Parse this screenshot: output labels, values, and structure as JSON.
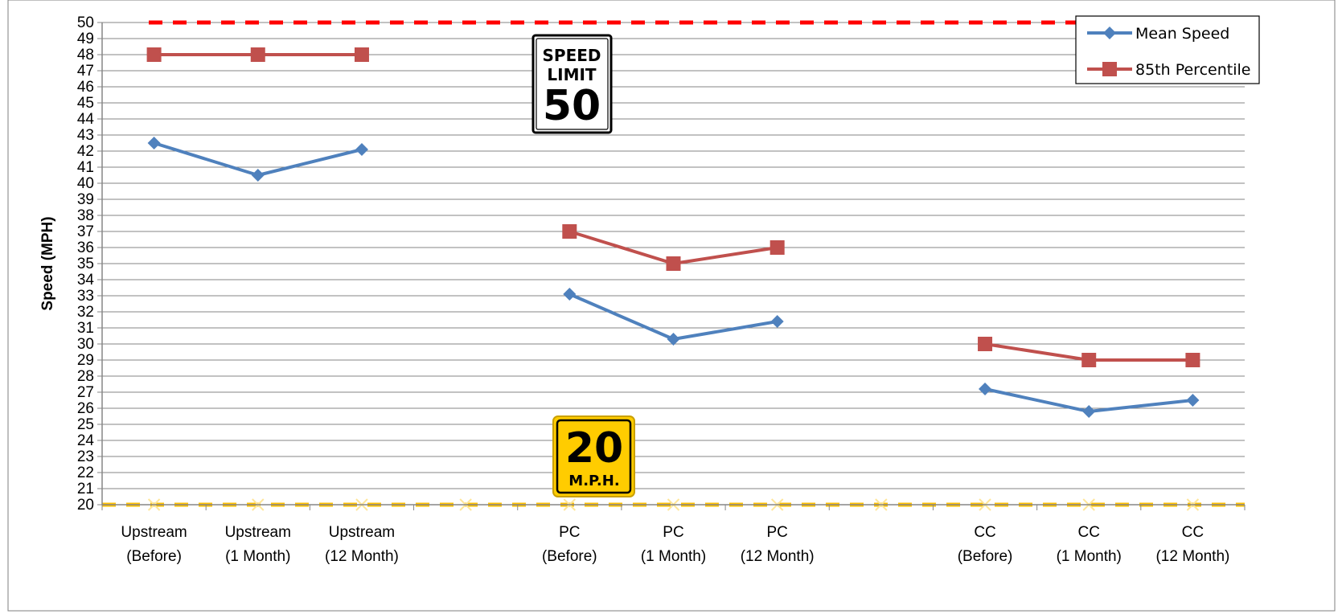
{
  "chart_data": {
    "type": "line",
    "title": "",
    "ylabel": "Speed (MPH)",
    "xlabel": "",
    "ylim": [
      20,
      50
    ],
    "y_ticks": [
      20,
      21,
      22,
      23,
      24,
      25,
      26,
      27,
      28,
      29,
      30,
      31,
      32,
      33,
      34,
      35,
      36,
      37,
      38,
      39,
      40,
      41,
      42,
      43,
      44,
      45,
      46,
      47,
      48,
      49,
      50
    ],
    "grid": true,
    "legend_position": "top-right",
    "categories": [
      [
        "Upstream",
        "(Before)"
      ],
      [
        "Upstream",
        "(1 Month)"
      ],
      [
        "Upstream",
        "(12 Month)"
      ],
      [
        "",
        ""
      ],
      [
        "PC",
        "(Before)"
      ],
      [
        "PC",
        "(1 Month)"
      ],
      [
        "PC",
        "(12 Month)"
      ],
      [
        "",
        ""
      ],
      [
        "CC",
        "(Before)"
      ],
      [
        "CC",
        "(1 Month)"
      ],
      [
        "CC",
        "(12 Month)"
      ]
    ],
    "series": [
      {
        "name": "Mean Speed",
        "color": "#4f81bd",
        "marker": "diamond",
        "values": [
          42.5,
          40.5,
          42.1,
          null,
          33.1,
          30.3,
          31.4,
          null,
          27.2,
          25.8,
          26.5
        ]
      },
      {
        "name": "85th Percentile",
        "color": "#c0504d",
        "marker": "square",
        "values": [
          48,
          48,
          48,
          null,
          37,
          35,
          36,
          null,
          30,
          29,
          29
        ]
      }
    ],
    "reference_lines": [
      {
        "value": 50,
        "color": "#ff0000",
        "style": "dashed"
      },
      {
        "value": 20,
        "color": "#ffc000",
        "style": "dashed"
      }
    ],
    "signs": {
      "speed_limit": {
        "line1": "SPEED",
        "line2": "LIMIT",
        "number": "50"
      },
      "advisory": {
        "number": "20",
        "unit": "M.P.H."
      }
    }
  }
}
